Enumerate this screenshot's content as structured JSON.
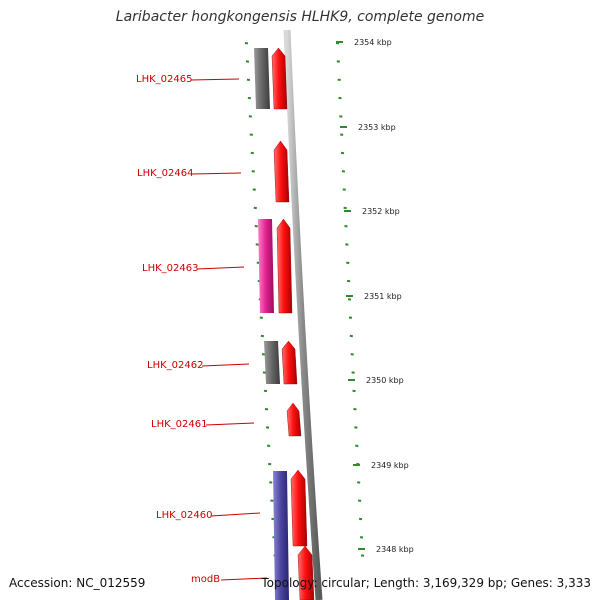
{
  "title": "Laribacter hongkongensis HLHK9, complete genome",
  "accession": "Accession: NC_012559",
  "topology": "Topology: circular; Length: 3,169,329 bp; Genes: 3,333",
  "colors": {
    "backbone": "#8a8a8a",
    "ruler_tick": "#2e8b2e",
    "label": "#cc0000",
    "cds": "#ee1111",
    "gray_feature": "#666666",
    "pink_feature": "#e0208f",
    "blue_feature": "#4a44a0"
  },
  "ruler": [
    {
      "kbp": 2354,
      "label": "2354 kbp"
    },
    {
      "kbp": 2353,
      "label": "2353 kbp"
    },
    {
      "kbp": 2352,
      "label": "2352 kbp"
    },
    {
      "kbp": 2351,
      "label": "2351 kbp"
    },
    {
      "kbp": 2350,
      "label": "2350 kbp"
    },
    {
      "kbp": 2349,
      "label": "2349 kbp"
    },
    {
      "kbp": 2348,
      "label": "2348 kbp"
    }
  ],
  "genes": [
    {
      "label": "LHK_02465",
      "feature": "gray_feature"
    },
    {
      "label": "LHK_02464"
    },
    {
      "label": "LHK_02463",
      "feature": "pink_feature"
    },
    {
      "label": "LHK_02462",
      "feature": "gray_feature"
    },
    {
      "label": "LHK_02461"
    },
    {
      "label": "LHK_02460",
      "feature": "blue_feature"
    },
    {
      "label": "modB"
    }
  ]
}
